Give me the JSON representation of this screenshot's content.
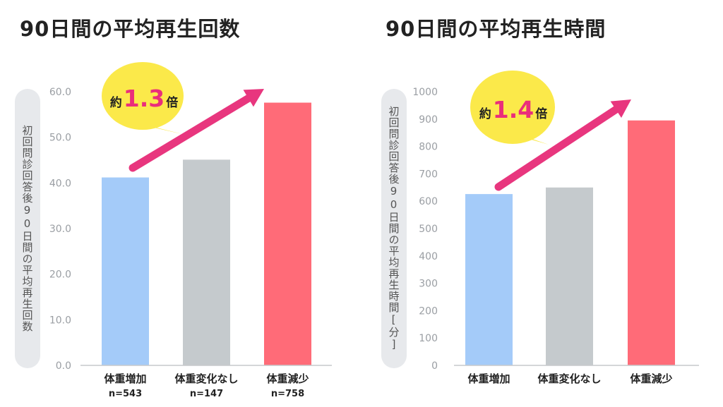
{
  "colors": {
    "bar_gain": "#a4cbf9",
    "bar_none": "#c5cacd",
    "bar_loss": "#ff6b78",
    "arrow": "#e8367e",
    "bubble": "#fbe94a",
    "bubble_accent": "#ea2e7b",
    "axis": "#c6c9cc"
  },
  "chart_data": [
    {
      "type": "bar",
      "title": "90日間の平均再生回数",
      "ylabel": "初回問診回答後90日間の平均再生回数",
      "ylim": [
        0,
        60
      ],
      "yticks": [
        "0.0",
        "10.0",
        "20.0",
        "30.0",
        "40.0",
        "50.0",
        "60.0"
      ],
      "categories": [
        "体重増加",
        "体重変化なし",
        "体重減少"
      ],
      "n_labels": [
        "n=543",
        "n=147",
        "n=758"
      ],
      "values": [
        41.2,
        45.1,
        57.6
      ],
      "bar_colors": [
        "#a4cbf9",
        "#c5cacd",
        "#ff6b78"
      ],
      "annotation": {
        "prefix": "約",
        "value": "1.3",
        "suffix": "倍"
      }
    },
    {
      "type": "bar",
      "title": "90日間の平均再生時間",
      "ylabel": "初回問診回答後90日間の平均再生時間[分]",
      "ylim": [
        0,
        1000
      ],
      "yticks": [
        "0",
        "100",
        "200",
        "300",
        "400",
        "500",
        "600",
        "700",
        "800",
        "900",
        "1000"
      ],
      "categories": [
        "体重増加",
        "体重変化なし",
        "体重減少"
      ],
      "n_labels": [],
      "values": [
        626,
        650,
        895
      ],
      "bar_colors": [
        "#a4cbf9",
        "#c5cacd",
        "#ff6b78"
      ],
      "annotation": {
        "prefix": "約",
        "value": "1.4",
        "suffix": "倍"
      }
    }
  ]
}
